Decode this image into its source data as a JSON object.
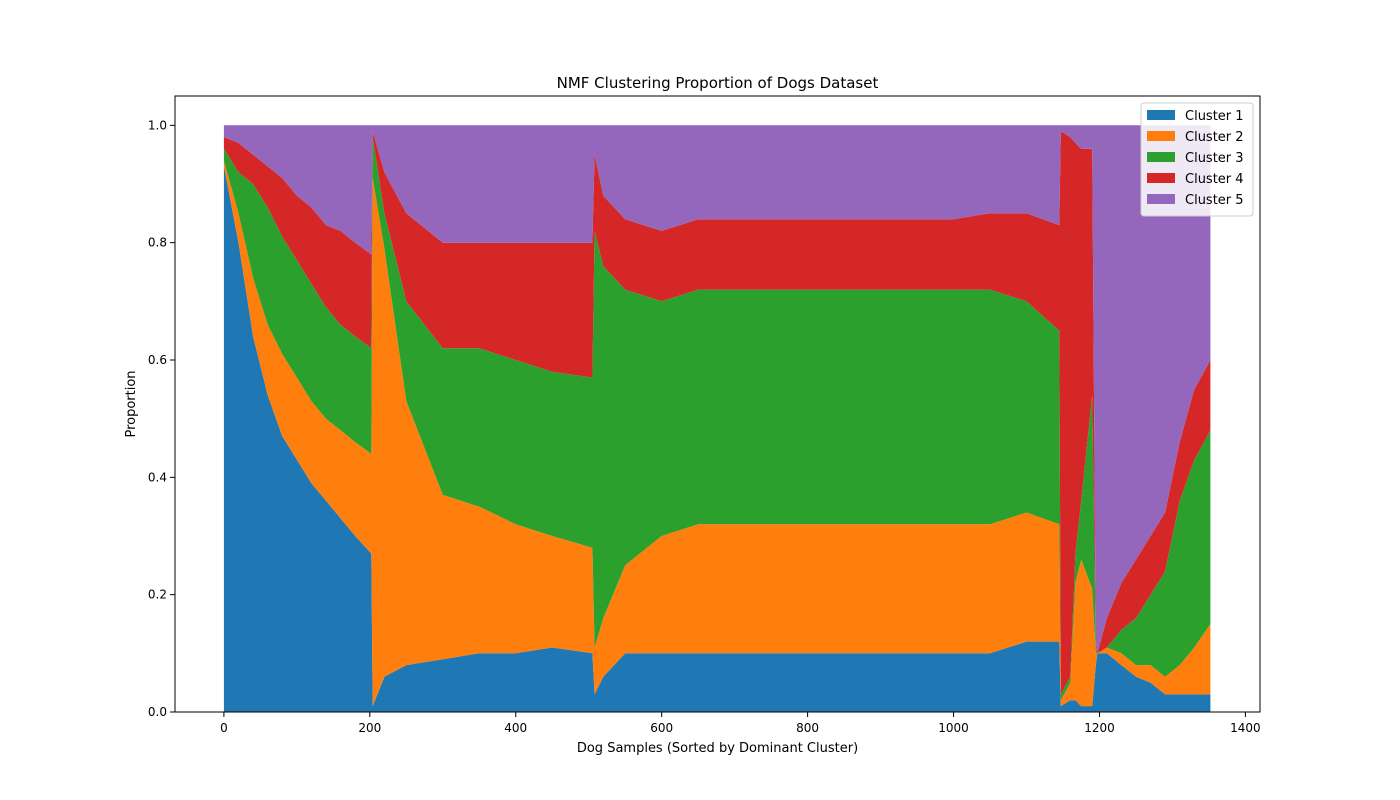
{
  "chart_data": {
    "type": "area",
    "stacked": true,
    "title": "NMF Clustering Proportion of Dogs Dataset",
    "xlabel": "Dog Samples (Sorted by Dominant Cluster)",
    "ylabel": "Proportion",
    "xlim": [
      -67,
      1420
    ],
    "ylim": [
      0,
      1.05
    ],
    "xticks": [
      0,
      200,
      400,
      600,
      800,
      1000,
      1200,
      1400
    ],
    "yticks": [
      0.0,
      0.2,
      0.4,
      0.6,
      0.8,
      1.0
    ],
    "xtick_labels": [
      "0",
      "200",
      "400",
      "600",
      "800",
      "1000",
      "1200",
      "1400"
    ],
    "ytick_labels": [
      "0.0",
      "0.2",
      "0.4",
      "0.6",
      "0.8",
      "1.0"
    ],
    "legend_position": "top-right",
    "grid": false,
    "x": [
      0,
      20,
      40,
      60,
      80,
      100,
      120,
      140,
      160,
      180,
      202,
      204,
      220,
      250,
      300,
      350,
      400,
      450,
      505,
      508,
      520,
      550,
      600,
      650,
      700,
      750,
      800,
      850,
      900,
      950,
      1000,
      1050,
      1100,
      1145,
      1147,
      1160,
      1167,
      1175,
      1190,
      1195,
      1197,
      1210,
      1230,
      1250,
      1270,
      1290,
      1310,
      1330,
      1352
    ],
    "series": [
      {
        "name": "Cluster 1",
        "color": "#1f77b4",
        "values": [
          0.93,
          0.8,
          0.64,
          0.54,
          0.47,
          0.43,
          0.39,
          0.36,
          0.33,
          0.3,
          0.27,
          0.01,
          0.06,
          0.08,
          0.09,
          0.1,
          0.1,
          0.11,
          0.1,
          0.03,
          0.06,
          0.1,
          0.1,
          0.1,
          0.1,
          0.1,
          0.1,
          0.1,
          0.1,
          0.1,
          0.1,
          0.1,
          0.12,
          0.12,
          0.01,
          0.02,
          0.02,
          0.01,
          0.01,
          0.08,
          0.1,
          0.1,
          0.08,
          0.06,
          0.05,
          0.03,
          0.03,
          0.03,
          0.03
        ]
      },
      {
        "name": "Cluster 2",
        "color": "#ff7f0e",
        "values": [
          0.01,
          0.05,
          0.1,
          0.12,
          0.14,
          0.14,
          0.14,
          0.14,
          0.15,
          0.16,
          0.17,
          0.9,
          0.73,
          0.45,
          0.28,
          0.25,
          0.22,
          0.19,
          0.18,
          0.08,
          0.1,
          0.15,
          0.2,
          0.22,
          0.22,
          0.22,
          0.22,
          0.22,
          0.22,
          0.22,
          0.22,
          0.22,
          0.22,
          0.2,
          0.01,
          0.03,
          0.2,
          0.25,
          0.2,
          0.02,
          0.0,
          0.01,
          0.02,
          0.02,
          0.03,
          0.03,
          0.05,
          0.08,
          0.12
        ]
      },
      {
        "name": "Cluster 3",
        "color": "#2ca02c",
        "values": [
          0.02,
          0.07,
          0.16,
          0.2,
          0.2,
          0.2,
          0.2,
          0.19,
          0.18,
          0.18,
          0.18,
          0.07,
          0.06,
          0.17,
          0.25,
          0.27,
          0.28,
          0.28,
          0.29,
          0.71,
          0.6,
          0.47,
          0.4,
          0.4,
          0.4,
          0.4,
          0.4,
          0.4,
          0.4,
          0.4,
          0.4,
          0.4,
          0.36,
          0.33,
          0.01,
          0.01,
          0.05,
          0.1,
          0.33,
          0.01,
          0.0,
          0.0,
          0.04,
          0.08,
          0.12,
          0.18,
          0.28,
          0.32,
          0.33
        ]
      },
      {
        "name": "Cluster 4",
        "color": "#d62728",
        "values": [
          0.02,
          0.05,
          0.05,
          0.07,
          0.1,
          0.11,
          0.13,
          0.14,
          0.16,
          0.16,
          0.16,
          0.01,
          0.07,
          0.15,
          0.18,
          0.18,
          0.2,
          0.22,
          0.23,
          0.13,
          0.12,
          0.12,
          0.12,
          0.12,
          0.12,
          0.12,
          0.12,
          0.12,
          0.12,
          0.12,
          0.12,
          0.13,
          0.15,
          0.18,
          0.96,
          0.92,
          0.7,
          0.6,
          0.42,
          0.01,
          0.0,
          0.05,
          0.08,
          0.1,
          0.1,
          0.1,
          0.1,
          0.12,
          0.12
        ]
      },
      {
        "name": "Cluster 5",
        "color": "#9467bd",
        "values": [
          0.02,
          0.03,
          0.05,
          0.07,
          0.09,
          0.12,
          0.14,
          0.17,
          0.18,
          0.2,
          0.22,
          0.01,
          0.08,
          0.15,
          0.2,
          0.2,
          0.2,
          0.2,
          0.2,
          0.05,
          0.12,
          0.16,
          0.18,
          0.16,
          0.16,
          0.16,
          0.16,
          0.16,
          0.16,
          0.16,
          0.16,
          0.15,
          0.15,
          0.17,
          0.01,
          0.02,
          0.03,
          0.04,
          0.04,
          0.88,
          0.9,
          0.84,
          0.78,
          0.74,
          0.7,
          0.66,
          0.54,
          0.45,
          0.4
        ]
      }
    ]
  }
}
